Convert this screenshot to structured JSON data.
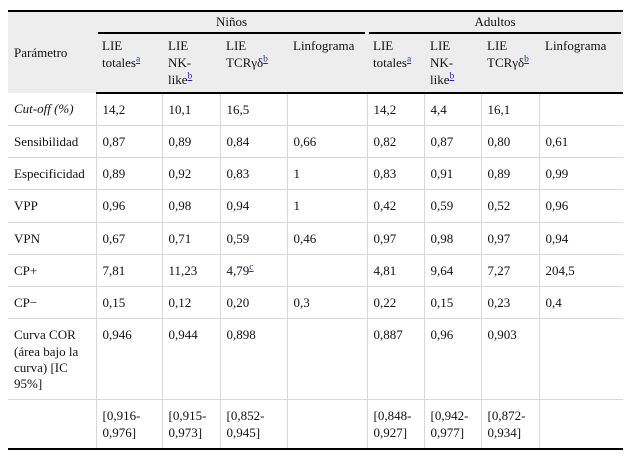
{
  "colors": {
    "footnote_link": "#2222cc",
    "header_background": "#ededed",
    "heavy_rule": "#000000",
    "grid_line": "#d8d8d8"
  },
  "table": {
    "row_header": "Parámetro",
    "groups": [
      {
        "label": "Niños"
      },
      {
        "label": "Adultos"
      }
    ],
    "columns": [
      {
        "id": "ninos-lie-totales",
        "lines": [
          "LIE",
          "totales"
        ],
        "sup": "a"
      },
      {
        "id": "ninos-lie-nk-like",
        "lines": [
          "LIE",
          "NK-",
          "like"
        ],
        "sup": "b"
      },
      {
        "id": "ninos-lie-tcr-gd",
        "lines": [
          "LIE",
          "TCRγδ"
        ],
        "sup": "b"
      },
      {
        "id": "ninos-linfograma",
        "lines": [
          "Linfograma"
        ],
        "sup": ""
      },
      {
        "id": "adultos-lie-totales",
        "lines": [
          "LIE",
          "totales"
        ],
        "sup": "a"
      },
      {
        "id": "adultos-lie-nk-like",
        "lines": [
          "LIE",
          "NK-",
          "like"
        ],
        "sup": "b"
      },
      {
        "id": "adultos-lie-tcr-gd",
        "lines": [
          "LIE",
          "TCRγδ"
        ],
        "sup": "b"
      },
      {
        "id": "adultos-linfograma",
        "lines": [
          "Linfograma"
        ],
        "sup": ""
      }
    ],
    "rows": [
      {
        "label": "Cut-off (%)",
        "italic": true,
        "cells": [
          "14,2",
          "10,1",
          "16,5",
          "",
          "14,2",
          "4,4",
          "16,1",
          ""
        ]
      },
      {
        "label": "Sensibilidad",
        "cells": [
          "0,87",
          "0,89",
          "0,84",
          "0,66",
          "0,82",
          "0,87",
          "0,80",
          "0,61"
        ]
      },
      {
        "label": "Especificidad",
        "cells": [
          "0,89",
          "0,92",
          "0,83",
          "1",
          "0,83",
          "0,91",
          "0,89",
          "0,99"
        ]
      },
      {
        "label": "VPP",
        "cells": [
          "0,96",
          "0,98",
          "0,94",
          "1",
          "0,42",
          "0,59",
          "0,52",
          "0,96"
        ]
      },
      {
        "label": "VPN",
        "cells": [
          "0,67",
          "0,71",
          "0,59",
          "0,46",
          "0,97",
          "0,98",
          "0,97",
          "0,94"
        ]
      },
      {
        "label": "CP+",
        "cells": [
          "7,81",
          "11,23",
          {
            "t": "4,79",
            "sup": "c"
          },
          "",
          "4,81",
          "9,64",
          "7,27",
          "204,5"
        ]
      },
      {
        "label": "CP−",
        "cells": [
          "0,15",
          "0,12",
          "0,20",
          "0,3",
          "0,22",
          "0,15",
          "0,23",
          "0,4"
        ]
      },
      {
        "label": "Curva COR (área bajo la curva) [IC 95%]",
        "cells": [
          "0,946",
          "0,944",
          "0,898",
          "",
          "0,887",
          "0,96",
          "0,903",
          ""
        ]
      },
      {
        "label": "",
        "cells": [
          "[0,916-0,976]",
          "[0,915-0,973]",
          "[0,852-0,945]",
          "",
          "[0,848-0,927]",
          "[0,942-0,977]",
          "[0,872-0,934]",
          ""
        ]
      }
    ]
  }
}
